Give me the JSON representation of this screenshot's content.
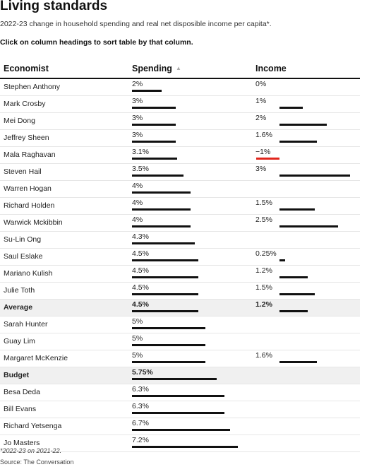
{
  "title": "Living standards",
  "subtitle": "2022-23 change in household spending and real net disposible income per capita*.",
  "instruction": "Click on column headings to sort table by that column.",
  "columns": {
    "economist": "Economist",
    "spending": "Spending",
    "income": "Income"
  },
  "sort_icon": "sort-ascending-triangle-icon",
  "colors": {
    "bar": "#111111",
    "negative_bar": "#e1261c",
    "highlight_row": "#f0f0f0"
  },
  "footnote": "*2022-23 on 2021-22.",
  "source": "Source: The Conversation",
  "chart_data": {
    "type": "table",
    "rows": [
      {
        "name": "Stephen Anthony",
        "spending": 2,
        "spending_label": "2%",
        "income": 0,
        "income_label": "0%"
      },
      {
        "name": "Mark Crosby",
        "spending": 3,
        "spending_label": "3%",
        "income": 1,
        "income_label": "1%"
      },
      {
        "name": "Mei Dong",
        "spending": 3,
        "spending_label": "3%",
        "income": 2,
        "income_label": "2%"
      },
      {
        "name": "Jeffrey Sheen",
        "spending": 3,
        "spending_label": "3%",
        "income": 1.6,
        "income_label": "1.6%"
      },
      {
        "name": "Mala Raghavan",
        "spending": 3.1,
        "spending_label": "3.1%",
        "income": -1,
        "income_label": "−1%"
      },
      {
        "name": "Steven Hail",
        "spending": 3.5,
        "spending_label": "3.5%",
        "income": 3,
        "income_label": "3%"
      },
      {
        "name": "Warren Hogan",
        "spending": 4,
        "spending_label": "4%",
        "income": null,
        "income_label": ""
      },
      {
        "name": "Richard Holden",
        "spending": 4,
        "spending_label": "4%",
        "income": 1.5,
        "income_label": "1.5%"
      },
      {
        "name": "Warwick Mckibbin",
        "spending": 4,
        "spending_label": "4%",
        "income": 2.5,
        "income_label": "2.5%"
      },
      {
        "name": "Su-Lin Ong",
        "spending": 4.3,
        "spending_label": "4.3%",
        "income": null,
        "income_label": ""
      },
      {
        "name": "Saul Eslake",
        "spending": 4.5,
        "spending_label": "4.5%",
        "income": 0.25,
        "income_label": "0.25%"
      },
      {
        "name": "Mariano Kulish",
        "spending": 4.5,
        "spending_label": "4.5%",
        "income": 1.2,
        "income_label": "1.2%"
      },
      {
        "name": "Julie Toth",
        "spending": 4.5,
        "spending_label": "4.5%",
        "income": 1.5,
        "income_label": "1.5%"
      },
      {
        "name": "Average",
        "spending": 4.5,
        "spending_label": "4.5%",
        "income": 1.2,
        "income_label": "1.2%",
        "highlight": true
      },
      {
        "name": "Sarah Hunter",
        "spending": 5,
        "spending_label": "5%",
        "income": null,
        "income_label": ""
      },
      {
        "name": "Guay Lim",
        "spending": 5,
        "spending_label": "5%",
        "income": null,
        "income_label": ""
      },
      {
        "name": "Margaret McKenzie",
        "spending": 5,
        "spending_label": "5%",
        "income": 1.6,
        "income_label": "1.6%"
      },
      {
        "name": "Budget",
        "spending": 5.75,
        "spending_label": "5.75%",
        "income": null,
        "income_label": "",
        "highlight": true
      },
      {
        "name": "Besa Deda",
        "spending": 6.3,
        "spending_label": "6.3%",
        "income": null,
        "income_label": ""
      },
      {
        "name": "Bill Evans",
        "spending": 6.3,
        "spending_label": "6.3%",
        "income": null,
        "income_label": ""
      },
      {
        "name": "Richard Yetsenga",
        "spending": 6.7,
        "spending_label": "6.7%",
        "income": null,
        "income_label": ""
      },
      {
        "name": "Jo Masters",
        "spending": 7.2,
        "spending_label": "7.2%",
        "income": null,
        "income_label": ""
      }
    ]
  }
}
